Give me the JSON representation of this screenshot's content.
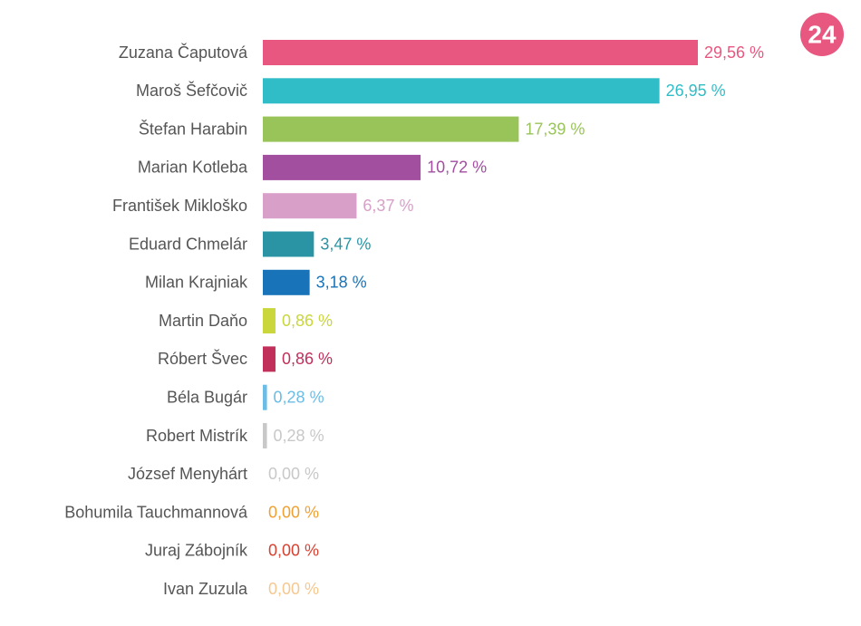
{
  "chart_data": {
    "type": "bar",
    "orientation": "horizontal",
    "logo": "24",
    "categories": [
      "Zuzana Čaputová",
      "Maroš Šefčovič",
      "Štefan Harabin",
      "Marian Kotleba",
      "František Mikloško",
      "Eduard Chmelár",
      "Milan Krajniak",
      "Martin Daňo",
      "Róbert Švec",
      "Béla Bugár",
      "Robert Mistrík",
      "József Menyhárt",
      "Bohumila Tauchmannová",
      "Juraj Zábojník",
      "Ivan Zuzula"
    ],
    "values": [
      29.56,
      26.95,
      17.39,
      10.72,
      6.37,
      3.47,
      3.18,
      0.86,
      0.86,
      0.28,
      0.28,
      0,
      0,
      0,
      0
    ],
    "value_labels": [
      "29,56 %",
      "26,95 %",
      "17,39 %",
      "10,72 %",
      "6,37 %",
      "3,47 %",
      "3,18 %",
      "0,86 %",
      "0,86 %",
      "0,28 %",
      "0,28 %",
      "0,00 %",
      "0,00 %",
      "0,00 %",
      "0,00 %"
    ],
    "colors": [
      "#e8577f",
      "#30bdc7",
      "#99c45a",
      "#a24fa0",
      "#d8a0c8",
      "#2a94a4",
      "#1873b8",
      "#c9d63c",
      "#c0305a",
      "#6bbde6",
      "#c8c8c8",
      "#c8c8c8",
      "#f0a030",
      "#d84030",
      "#f6c890"
    ]
  }
}
